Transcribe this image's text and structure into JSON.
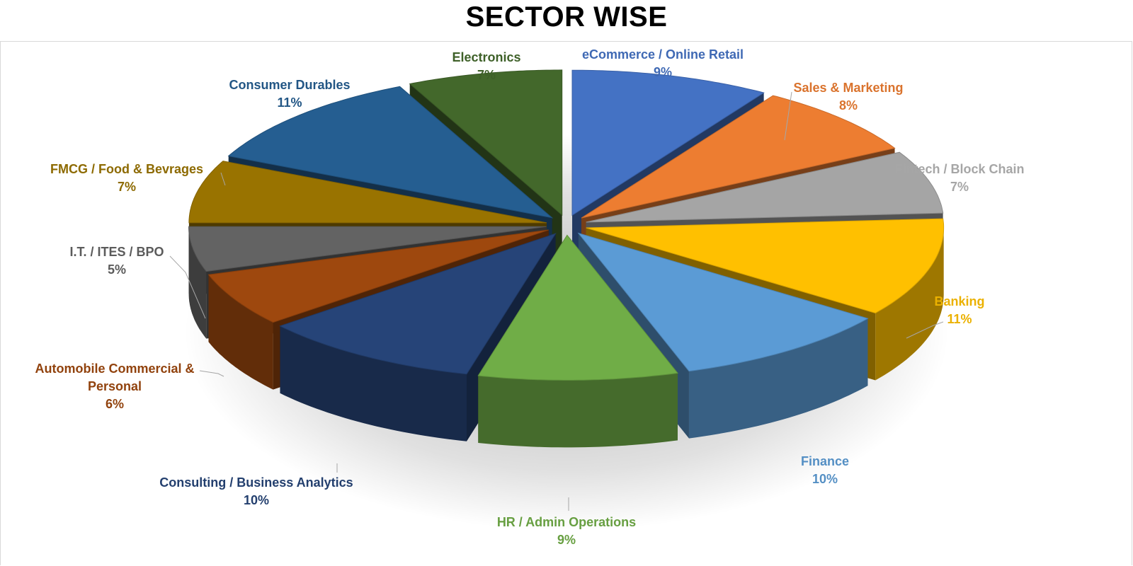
{
  "chart_data": {
    "type": "pie",
    "title": "SECTOR WISE",
    "slices": [
      {
        "label": "eCommerce / Online Retail",
        "value": 9,
        "display": "9%",
        "color": "#4472C4"
      },
      {
        "label": "Sales & Marketing",
        "value": 8,
        "display": "8%",
        "color": "#ED7D31"
      },
      {
        "label": "Fintech / Block Chain",
        "value": 7,
        "display": "7%",
        "color": "#A5A5A5"
      },
      {
        "label": "Banking",
        "value": 11,
        "display": "11%",
        "color": "#FFC000"
      },
      {
        "label": "Finance",
        "value": 10,
        "display": "10%",
        "color": "#5B9BD5"
      },
      {
        "label": "HR / Admin Operations",
        "value": 9,
        "display": "9%",
        "color": "#70AD47"
      },
      {
        "label": "Consulting / Business Analytics",
        "value": 10,
        "display": "10%",
        "color": "#264478"
      },
      {
        "label": "Automobile Commercial & Personal",
        "value": 6,
        "display": "6%",
        "color": "#9E480E"
      },
      {
        "label": "I.T. / ITES / BPO",
        "value": 5,
        "display": "5%",
        "color": "#636363"
      },
      {
        "label": "FMCG / Food & Bevrages",
        "value": 7,
        "display": "7%",
        "color": "#997300"
      },
      {
        "label": "Consumer Durables",
        "value": 11,
        "display": "11%",
        "color": "#255E91"
      },
      {
        "label": "Electronics",
        "value": 7,
        "display": "7%",
        "color": "#43682B"
      }
    ],
    "exploded": true,
    "three_d": true,
    "legend": "none"
  }
}
